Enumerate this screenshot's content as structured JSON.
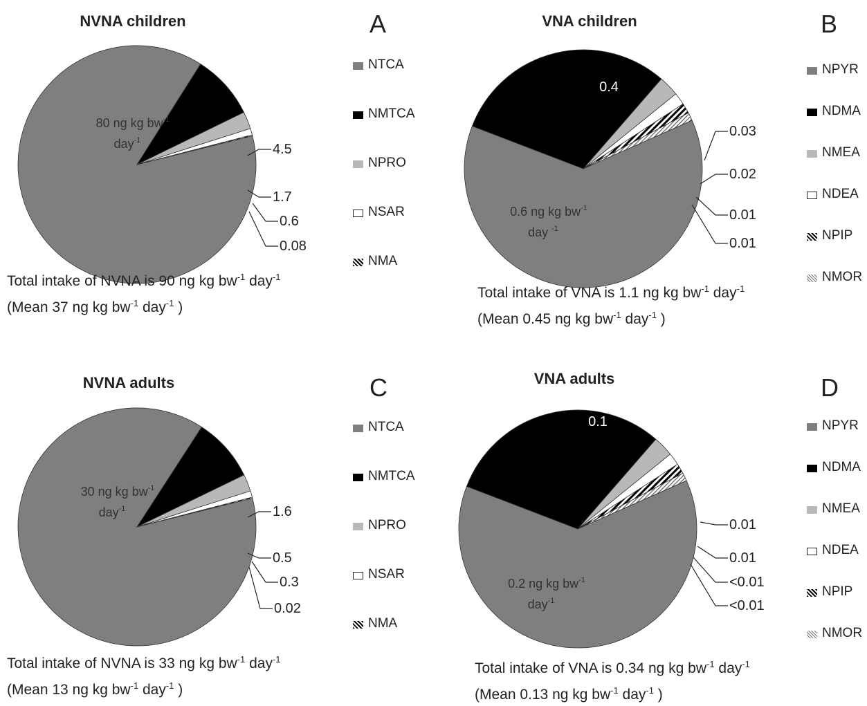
{
  "colors": {
    "NTCA": "#7f7f7f",
    "NMTCA": "#000000",
    "NPRO": "#b8b8b8",
    "NSAR": "#ffffff",
    "NMA": "hatch-dense",
    "NPYR": "#7f7f7f",
    "NDMA": "#000000",
    "NMEA": "#b8b8b8",
    "NDEA": "#ffffff",
    "NPIP": "hatch-dense",
    "NMOR": "hatch-light"
  },
  "chart_data": [
    {
      "type": "pie",
      "panel": "A",
      "title": "NVNA children",
      "categories": [
        "NTCA",
        "NMTCA",
        "NPRO",
        "NSAR",
        "NMA"
      ],
      "values": [
        80,
        4.5,
        1.7,
        0.6,
        0.08
      ],
      "data_labels": [
        "",
        "4.5",
        "1.7",
        "0.6",
        "0.08"
      ],
      "center_label": {
        "line1": "80 ng kg bw",
        "sup1": "-1",
        "line2": "day",
        "sup2": "-1"
      },
      "legend_position": "right",
      "caption": {
        "line1_pre": "Total intake of NVNA is 90 ng kg bw",
        "sup1": "-1",
        "line1_mid": " day",
        "sup2": "-1",
        "line2_pre": "(Mean 37 ng kg bw",
        "sup3": "-1",
        "line2_mid": " day",
        "sup4": "-1",
        "line2_post": " )"
      }
    },
    {
      "type": "pie",
      "panel": "B",
      "title": "VNA children",
      "categories": [
        "NPYR",
        "NDMA",
        "NMEA",
        "NDEA",
        "NPIP",
        "NMOR"
      ],
      "values": [
        0.6,
        0.4,
        0.03,
        0.02,
        0.01,
        0.01
      ],
      "data_labels": [
        "",
        "",
        "0.03",
        "0.02",
        "0.01",
        "0.01"
      ],
      "inside_label": "0.4",
      "center_label": {
        "line1": "0.6 ng kg bw",
        "sup1": "-1",
        "line2": "day ",
        "sup2": "-1"
      },
      "legend_position": "right",
      "caption": {
        "line1_pre": "Total intake of VNA is 1.1 ng kg bw",
        "sup1": "-1",
        "line1_mid": " day",
        "sup2": "-1",
        "line2_pre": "(Mean 0.45 ng kg bw",
        "sup3": "-1",
        "line2_mid": " day",
        "sup4": "-1",
        "line2_post": " )"
      }
    },
    {
      "type": "pie",
      "panel": "C",
      "title": "NVNA adults",
      "categories": [
        "NTCA",
        "NMTCA",
        "NPRO",
        "NSAR",
        "NMA"
      ],
      "values": [
        30,
        1.6,
        0.5,
        0.3,
        0.02
      ],
      "data_labels": [
        "",
        "1.6",
        "0.5",
        "0.3",
        "0.02"
      ],
      "center_label": {
        "line1": "30 ng kg bw",
        "sup1": "-1",
        "line2": "day",
        "sup2": "-1"
      },
      "legend_position": "right",
      "caption": {
        "line1_pre": "Total intake of NVNA is 33 ng kg bw",
        "sup1": "-1",
        "line1_mid": " day",
        "sup2": "-1",
        "line2_pre": "(Mean 13 ng kg bw",
        "sup3": "-1",
        "line2_mid": " day",
        "sup4": "-1",
        "line2_post": " )"
      }
    },
    {
      "type": "pie",
      "panel": "D",
      "title": "VNA adults",
      "categories": [
        "NPYR",
        "NDMA",
        "NMEA",
        "NDEA",
        "NPIP",
        "NMOR"
      ],
      "values": [
        0.2,
        0.1,
        0.01,
        0.01,
        0.005,
        0.005
      ],
      "data_labels": [
        "",
        "",
        "0.01",
        "0.01",
        "<0.01",
        "<0.01"
      ],
      "inside_label": "0.1",
      "center_label": {
        "line1": "0.2 ng kg bw",
        "sup1": "-1",
        "line2": "day",
        "sup2": "-1"
      },
      "legend_position": "right",
      "caption": {
        "line1_pre": "Total intake of VNA is 0.34 ng kg bw",
        "sup1": "-1",
        "line1_mid": " day",
        "sup2": "-1",
        "line2_pre": "(Mean 0.13 ng kg bw",
        "sup3": "-1",
        "line2_mid": " day",
        "sup4": "-1",
        "line2_post": " )"
      }
    }
  ]
}
